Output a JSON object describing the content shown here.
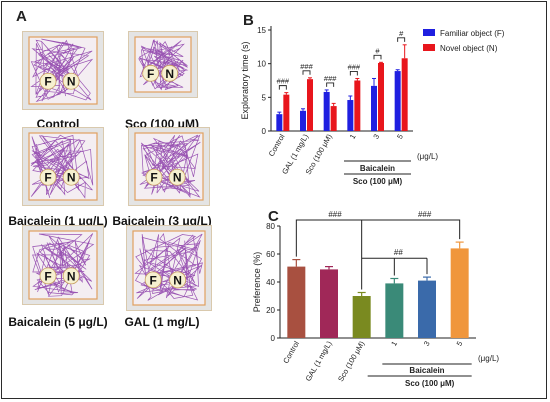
{
  "panels": {
    "A": {
      "letter": "A",
      "tracks": [
        {
          "label": "Control",
          "obj_f": "F",
          "obj_n": "N"
        },
        {
          "label": "Sco (100 μM)",
          "obj_f": "F",
          "obj_n": "N"
        },
        {
          "label": "Baicalein (1 μg/L)",
          "obj_f": "F",
          "obj_n": "N"
        },
        {
          "label": "Baicalein (3 μg/L)",
          "obj_f": "F",
          "obj_n": "N"
        },
        {
          "label": "Baicalein (5 μg/L)",
          "obj_f": "F",
          "obj_n": "N"
        },
        {
          "label": "GAL (1 mg/L)",
          "obj_f": "F",
          "obj_n": "N"
        }
      ]
    },
    "B": {
      "letter": "B"
    },
    "C": {
      "letter": "C"
    }
  },
  "colors": {
    "track_path": "#8a3aa8",
    "arena_border": "#e0a060",
    "familiar": "#1f1fe0",
    "novel": "#e8161c",
    "c_control": "#a85040",
    "c_gal": "#a02858",
    "c_sco": "#7a8a20",
    "c_b1": "#3a8a78",
    "c_b3": "#3a6aaa",
    "c_b5": "#f0963c"
  },
  "chart_data": [
    {
      "type": "bar",
      "panel": "B",
      "title": "",
      "ylabel": "Exploratory time (s)",
      "xlabel": "",
      "ylim": [
        0,
        15
      ],
      "yticks": [
        0,
        5,
        10,
        15
      ],
      "categories": [
        "Control",
        "GAL (1 mg/L)",
        "Sco (100 μM)",
        "1",
        "3",
        "5"
      ],
      "unit_label": "(μg/L)",
      "group_labels": [
        "Baicalein",
        "Sco (100 μM)"
      ],
      "series": [
        {
          "name": "Familiar object (F)",
          "values": [
            2.5,
            3.0,
            5.8,
            4.6,
            6.7,
            8.9
          ],
          "errors": [
            0.3,
            0.3,
            0.3,
            0.6,
            1.1,
            0.2
          ]
        },
        {
          "name": "Novel object (N)",
          "values": [
            5.4,
            7.7,
            3.7,
            7.5,
            10.1,
            10.8
          ],
          "errors": [
            0.3,
            0.2,
            0.4,
            0.3,
            0.1,
            2.0
          ]
        }
      ],
      "significance": [
        "###",
        "###",
        "###",
        "###",
        "#",
        "#"
      ],
      "legend_position": "top-right"
    },
    {
      "type": "bar",
      "panel": "C",
      "title": "",
      "ylabel": "Preference (%)",
      "xlabel": "",
      "ylim": [
        0,
        80
      ],
      "yticks": [
        0,
        20,
        40,
        60,
        80
      ],
      "categories": [
        "Control",
        "GAL (1 mg/L)",
        "Sco (100 μM)",
        "1",
        "3",
        "5"
      ],
      "unit_label": "(μg/L)",
      "group_labels": [
        "Baicalein",
        "Sco (100 μM)"
      ],
      "values": [
        51,
        49,
        30,
        39,
        41,
        64
      ],
      "errors": [
        5,
        2,
        2.5,
        3.5,
        2.5,
        4.5
      ],
      "comparisons": [
        {
          "from": 2,
          "to": 0,
          "label": "###"
        },
        {
          "from": 2,
          "to": 5,
          "label": "###"
        },
        {
          "from": 2,
          "to": [
            3,
            4
          ],
          "label": "##"
        }
      ]
    }
  ]
}
